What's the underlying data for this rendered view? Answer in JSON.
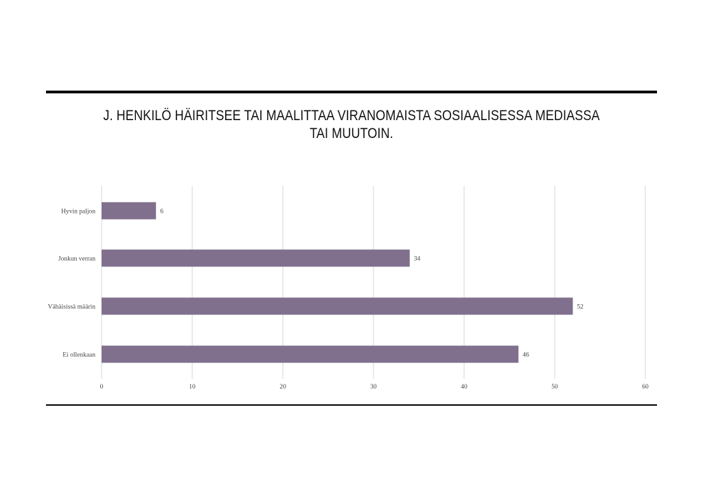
{
  "chart_data": {
    "type": "bar",
    "orientation": "horizontal",
    "title": "J. HENKILÖ HÄIRITSEE TAI MAALITTAA VIRANOMAISTA SOSIAALISESSA MEDIASSA TAI MUUTOIN.",
    "categories": [
      "Hyvin paljon",
      "Jonkun verran",
      "Vähäisissä määrin",
      "Ei ollenkaan"
    ],
    "values": [
      6,
      34,
      52,
      46
    ],
    "xlim": [
      0,
      60
    ],
    "xticks": [
      0,
      10,
      20,
      30,
      40,
      50,
      60
    ],
    "grid": "vertical",
    "legend": "none",
    "bar_color": "#80708d",
    "grid_color": "#d6d6d6"
  }
}
